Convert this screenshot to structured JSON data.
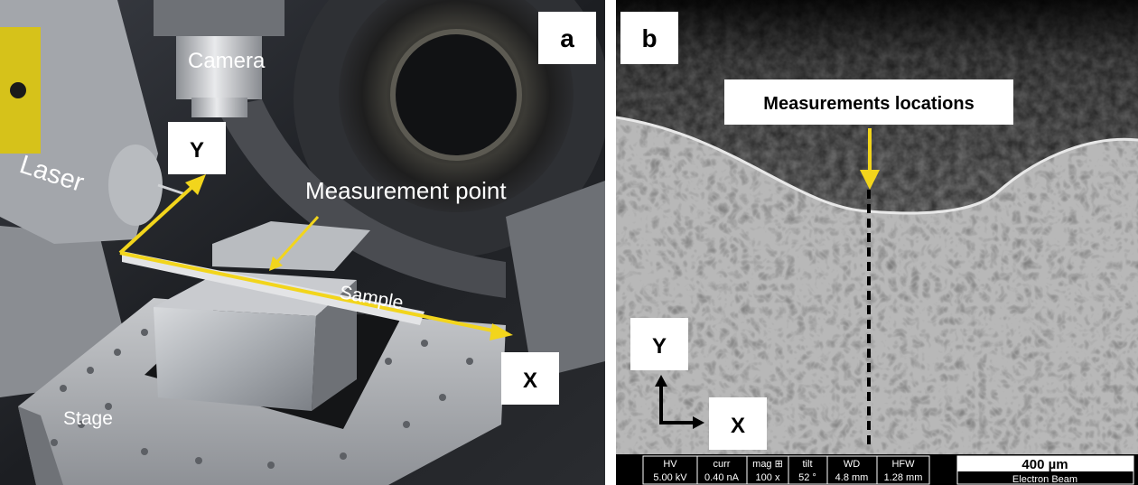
{
  "panel_a": {
    "letter": "a",
    "labels": {
      "camera": "Camera",
      "laser": "Laser",
      "measurement_point": "Measurement point",
      "sample": "Sample",
      "stage": "Stage",
      "y_axis": "Y",
      "x_axis": "X"
    },
    "colors": {
      "arrow": "#f2d51c",
      "label_box": "#ffffff",
      "label_text": "#ffffff"
    }
  },
  "panel_b": {
    "letter": "b",
    "annotation": "Measurements locations",
    "y_axis": "Y",
    "x_axis": "X",
    "databar": {
      "headers": [
        "HV",
        "curr",
        "mag ⊞",
        "tilt",
        "WD",
        "HFW"
      ],
      "values": [
        "5.00 kV",
        "0.40 nA",
        "100 x",
        "52 °",
        "4.8 mm",
        "1.28 mm"
      ],
      "scale_label": "400 µm",
      "beam": "Electron Beam"
    },
    "colors": {
      "arrow": "#f2d51c",
      "dashed_line": "#000000"
    }
  }
}
